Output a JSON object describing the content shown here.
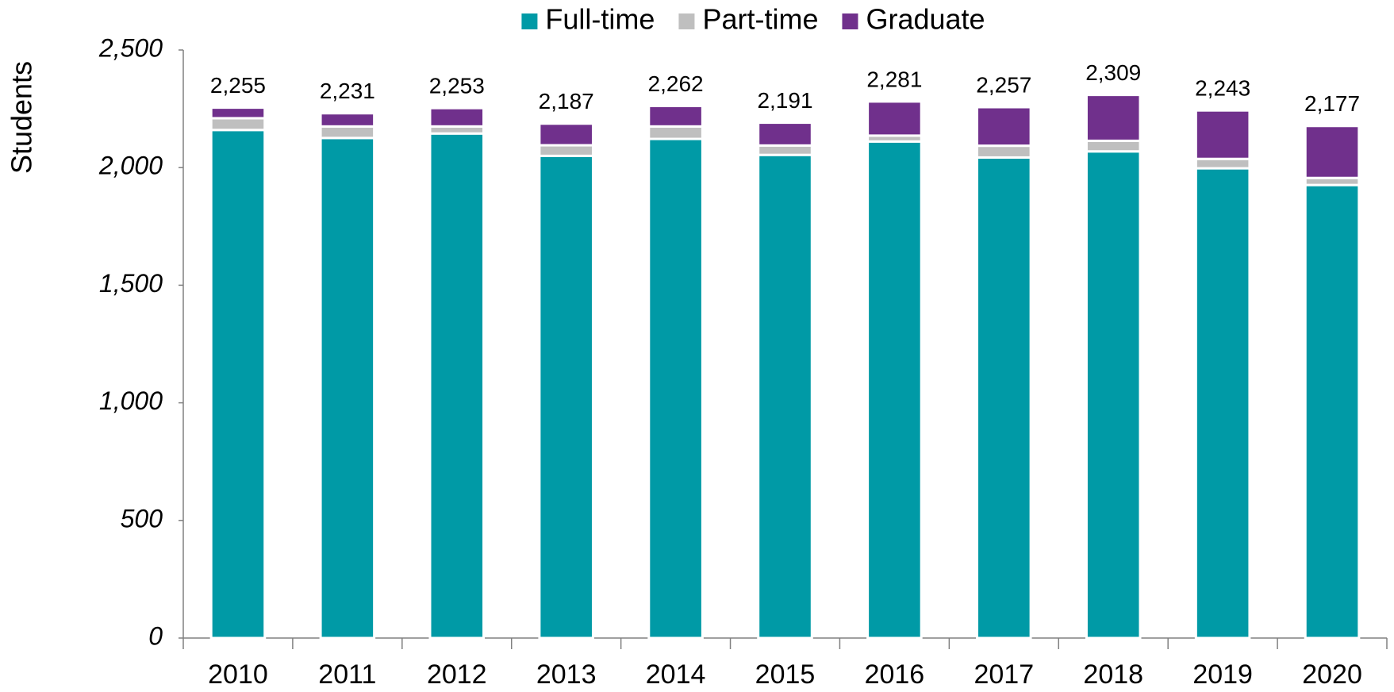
{
  "chart_data": {
    "type": "stacked_bar",
    "y_label": "Students",
    "categories": [
      "2010",
      "2011",
      "2012",
      "2013",
      "2014",
      "2015",
      "2016",
      "2017",
      "2018",
      "2019",
      "2020"
    ],
    "series": [
      {
        "name": "Full-time",
        "color": "#009aa6",
        "values": [
          2160,
          2126,
          2145,
          2050,
          2122,
          2054,
          2111,
          2043,
          2069,
          1997,
          1926
        ]
      },
      {
        "name": "Part-time",
        "color": "#bfbfbf",
        "values": [
          50,
          49,
          30,
          45,
          53,
          40,
          25,
          50,
          45,
          40,
          30
        ]
      },
      {
        "name": "Graduate",
        "color": "#70308c",
        "values": [
          45,
          56,
          78,
          92,
          87,
          97,
          145,
          164,
          195,
          206,
          221
        ]
      }
    ],
    "totals": {
      "values": [
        2255,
        2231,
        2253,
        2187,
        2262,
        2191,
        2281,
        2257,
        2309,
        2243,
        2177
      ],
      "value_labels": [
        "2,255",
        "2,231",
        "2,253",
        "2,187",
        "2,262",
        "2,191",
        "2,281",
        "2,257",
        "2,309",
        "2,243",
        "2,177"
      ]
    },
    "ylim": [
      0,
      2500
    ],
    "yticks": [
      0,
      500,
      {
        "value": 1000,
        "label": "1,000"
      },
      {
        "value": 1500,
        "label": "1,500"
      },
      {
        "value": 2000,
        "label": "2,000"
      },
      {
        "value": 2500,
        "label": "2,500"
      }
    ],
    "grid": false,
    "legend": "top"
  }
}
